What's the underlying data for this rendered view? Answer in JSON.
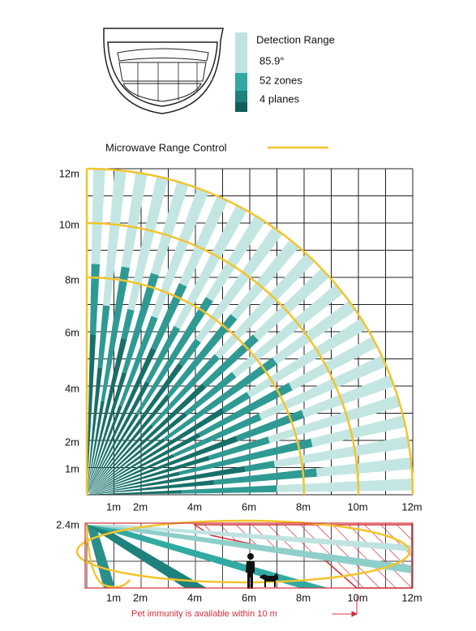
{
  "legend": {
    "title": "Detection Range",
    "items": [
      "85.9°",
      "52 zones",
      "4 planes"
    ]
  },
  "microwave_label": "Microwave Range Control",
  "top_view": {
    "y_labels": [
      "12m",
      "10m",
      "8m",
      "6m",
      "4m",
      "2m",
      "1m"
    ],
    "x_labels": [
      "1m",
      "2m",
      "4m",
      "6m",
      "8m",
      "10m",
      "12m"
    ]
  },
  "side_view": {
    "height_label": "2.4m",
    "x_labels": [
      "1m",
      "2m",
      "4m",
      "6m",
      "8m",
      "10m",
      "12m"
    ],
    "note": "Pet immunity is available within 10 m"
  }
}
